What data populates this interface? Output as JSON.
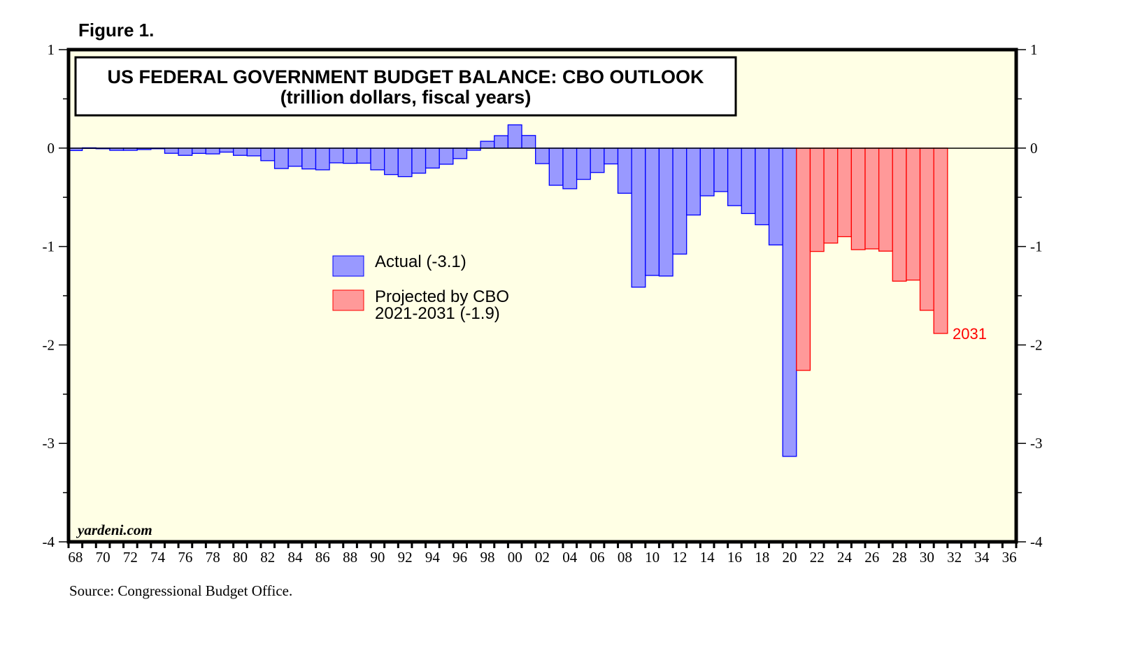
{
  "figure_label": "Figure 1.",
  "source": "Source: Congressional Budget Office.",
  "watermark": "yardeni.com",
  "colors": {
    "actual_fill": "#9999ff",
    "actual_stroke": "#0000ff",
    "proj_fill": "#ff9999",
    "proj_stroke": "#ff0000",
    "background": "#ffffe5"
  },
  "chart_data": {
    "type": "bar",
    "title": "US FEDERAL GOVERNMENT BUDGET BALANCE: CBO OUTLOOK",
    "subtitle": "(trillion dollars, fiscal years)",
    "xlabel": "",
    "ylabel": "",
    "ylim": [
      -4,
      1
    ],
    "yticks": [
      "1",
      "0",
      "-1",
      "-2",
      "-3",
      "-4"
    ],
    "xlim": [
      1968,
      2036
    ],
    "xticks": [
      "68",
      "70",
      "72",
      "74",
      "76",
      "78",
      "80",
      "82",
      "84",
      "86",
      "88",
      "90",
      "92",
      "94",
      "96",
      "98",
      "00",
      "02",
      "04",
      "06",
      "08",
      "10",
      "12",
      "14",
      "16",
      "18",
      "20",
      "22",
      "24",
      "26",
      "28",
      "30",
      "32",
      "34",
      "36"
    ],
    "legend": [
      {
        "label": "Actual (-3.1)"
      },
      {
        "label": "Projected by CBO",
        "label2": "2021-2031 (-1.9)"
      }
    ],
    "legend_placement": "center-left",
    "annotation": "2031",
    "series": [
      {
        "name": "Actual",
        "start_year": 1968,
        "values": [
          -0.025,
          0.003,
          -0.003,
          -0.023,
          -0.023,
          -0.015,
          -0.006,
          -0.053,
          -0.074,
          -0.054,
          -0.059,
          -0.041,
          -0.074,
          -0.079,
          -0.128,
          -0.208,
          -0.185,
          -0.212,
          -0.221,
          -0.15,
          -0.155,
          -0.153,
          -0.221,
          -0.269,
          -0.29,
          -0.255,
          -0.203,
          -0.164,
          -0.107,
          -0.022,
          0.069,
          0.126,
          0.236,
          0.128,
          -0.158,
          -0.378,
          -0.413,
          -0.318,
          -0.248,
          -0.161,
          -0.459,
          -1.413,
          -1.294,
          -1.3,
          -1.077,
          -0.68,
          -0.485,
          -0.442,
          -0.585,
          -0.665,
          -0.779,
          -0.984,
          -3.132
        ]
      },
      {
        "name": "Projected by CBO",
        "start_year": 2021,
        "values": [
          -2.258,
          -1.05,
          -0.965,
          -0.9,
          -1.032,
          -1.024,
          -1.047,
          -1.352,
          -1.341,
          -1.648,
          -1.883
        ]
      }
    ]
  }
}
